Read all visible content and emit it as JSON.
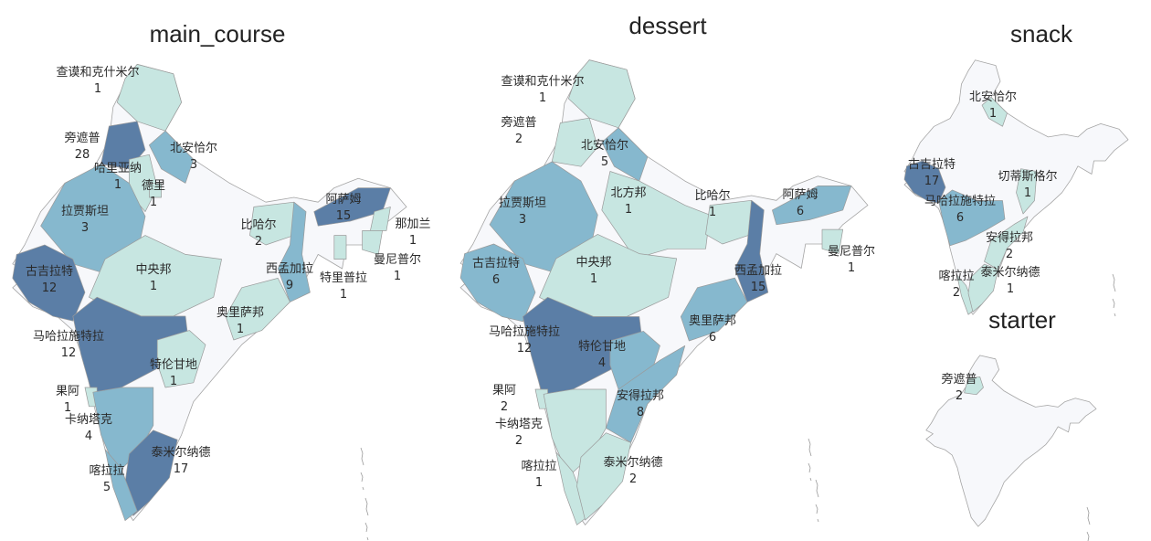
{
  "chart_data": [
    {
      "type": "choropleth",
      "title": "main_course",
      "colors": {
        "high": "#5b7ea6",
        "mid": "#86b8ce",
        "low": "#c7e6e1",
        "none": "#f7f8fb"
      },
      "regions": [
        {
          "name": "查谟和克什米尔",
          "value": 1
        },
        {
          "name": "旁遮普",
          "value": 28
        },
        {
          "name": "哈里亚纳",
          "value": 1
        },
        {
          "name": "北安恰尔",
          "value": 3
        },
        {
          "name": "德里",
          "value": 1
        },
        {
          "name": "拉贾斯坦",
          "value": 3
        },
        {
          "name": "阿萨姆",
          "value": 15
        },
        {
          "name": "那加兰",
          "value": 1
        },
        {
          "name": "比哈尔",
          "value": 2
        },
        {
          "name": "曼尼普尔",
          "value": 1
        },
        {
          "name": "古吉拉特",
          "value": 12
        },
        {
          "name": "中央邦",
          "value": 1
        },
        {
          "name": "西孟加拉",
          "value": 9
        },
        {
          "name": "特里普拉",
          "value": 1
        },
        {
          "name": "奥里萨邦",
          "value": 1
        },
        {
          "name": "马哈拉施特拉",
          "value": 12
        },
        {
          "name": "特伦甘地",
          "value": 1
        },
        {
          "name": "果阿",
          "value": 1
        },
        {
          "name": "卡纳塔克",
          "value": 4
        },
        {
          "name": "泰米尔纳德",
          "value": 17
        },
        {
          "name": "喀拉拉",
          "value": 5
        }
      ]
    },
    {
      "type": "choropleth",
      "title": "dessert",
      "colors": {
        "high": "#5b7ea6",
        "mid": "#86b8ce",
        "low": "#c7e6e1",
        "none": "#f7f8fb"
      },
      "regions": [
        {
          "name": "查谟和克什米尔",
          "value": 1
        },
        {
          "name": "旁遮普",
          "value": 2
        },
        {
          "name": "北安恰尔",
          "value": 5
        },
        {
          "name": "拉贾斯坦",
          "value": 3
        },
        {
          "name": "北方邦",
          "value": 1
        },
        {
          "name": "比哈尔",
          "value": 1
        },
        {
          "name": "阿萨姆",
          "value": 6
        },
        {
          "name": "曼尼普尔",
          "value": 1
        },
        {
          "name": "古吉拉特",
          "value": 6
        },
        {
          "name": "中央邦",
          "value": 1
        },
        {
          "name": "西孟加拉",
          "value": 15
        },
        {
          "name": "奥里萨邦",
          "value": 6
        },
        {
          "name": "马哈拉施特拉",
          "value": 12
        },
        {
          "name": "特伦甘地",
          "value": 4
        },
        {
          "name": "安得拉邦",
          "value": 8
        },
        {
          "name": "果阿",
          "value": 2
        },
        {
          "name": "卡纳塔克",
          "value": 2
        },
        {
          "name": "喀拉拉",
          "value": 1
        },
        {
          "name": "泰米尔纳德",
          "value": 2
        }
      ]
    },
    {
      "type": "choropleth",
      "title": "snack",
      "colors": {
        "high": "#5b7ea6",
        "mid": "#86b8ce",
        "low": "#c7e6e1",
        "none": "#f7f8fb"
      },
      "regions": [
        {
          "name": "北安恰尔",
          "value": 1
        },
        {
          "name": "古吉拉特",
          "value": 17
        },
        {
          "name": "切蒂斯格尔",
          "value": 1
        },
        {
          "name": "马哈拉施特拉",
          "value": 6
        },
        {
          "name": "安得拉邦",
          "value": 2
        },
        {
          "name": "喀拉拉",
          "value": 2
        },
        {
          "name": "泰米尔纳德",
          "value": 1
        }
      ]
    },
    {
      "type": "choropleth",
      "title": "starter",
      "colors": {
        "high": "#5b7ea6",
        "mid": "#86b8ce",
        "low": "#c7e6e1",
        "none": "#f7f8fb"
      },
      "regions": [
        {
          "name": "旁遮普",
          "value": 2
        }
      ]
    }
  ]
}
